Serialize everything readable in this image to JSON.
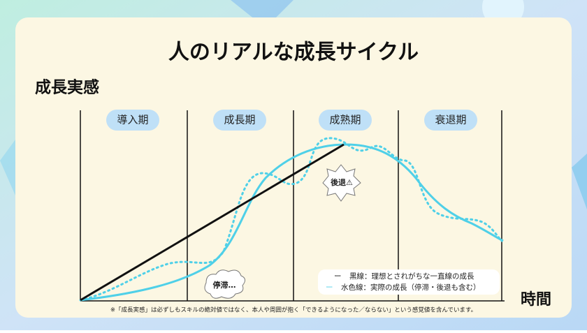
{
  "title": "人のリアルな成長サイクル",
  "y_label": "成長実感",
  "x_label": "時間",
  "phases": [
    "導入期",
    "成長期",
    "成熟期",
    "衰退期"
  ],
  "bubbles": {
    "stall": "停滞…",
    "regress": "後退⚠"
  },
  "legend": [
    {
      "mark": "ー",
      "text": "黒線：理想とされがちな一直線の成長"
    },
    {
      "mark": "ー",
      "text": "水色線：実際の成長（停滞・後退も含む）"
    }
  ],
  "footnote": "※「成長実感」は必ずしもスキルの絶対値ではなく、本人や周囲が抱く「できるようになった／ならない」という感覚値を含んでいます。"
}
